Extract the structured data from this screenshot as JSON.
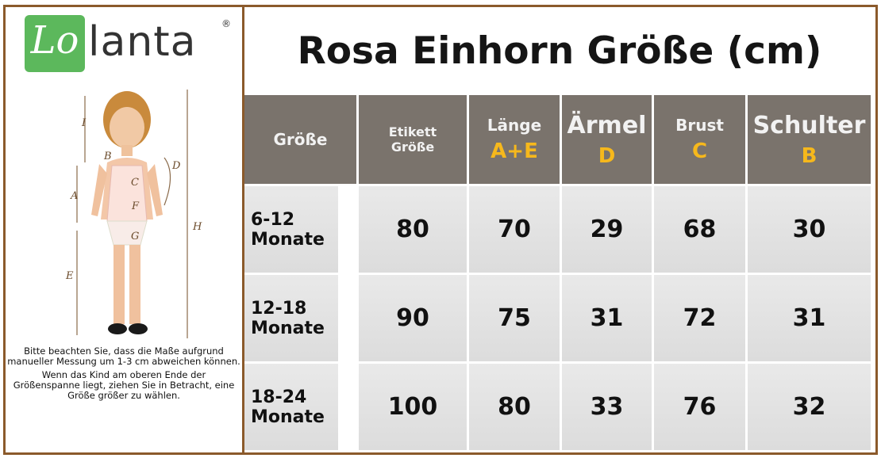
{
  "logo": {
    "mark": "Lo",
    "text": "lanta",
    "registered": "®"
  },
  "title": "Rosa Einhorn Größe (cm)",
  "diagram": {
    "labels": [
      "I",
      "B",
      "D",
      "A",
      "C",
      "F",
      "H",
      "G",
      "E"
    ]
  },
  "notes": [
    "Bitte beachten Sie, dass die Maße aufgrund manueller Messung um 1-3 cm abweichen können.",
    "Wenn das Kind am oberen Ende der Größenspanne liegt, ziehen Sie in Betracht, eine Größe größer zu wählen."
  ],
  "table": {
    "header": [
      {
        "label": "Größe"
      },
      {
        "label": "Etikett Größe"
      },
      {
        "label": "Länge",
        "letter": "A+E"
      },
      {
        "label": "Ärmel",
        "letter": "D"
      },
      {
        "label": "Brust",
        "letter": "C"
      },
      {
        "label": "Schulter",
        "letter": "B"
      }
    ],
    "rows": [
      [
        "6-12 Monate",
        80,
        70,
        29,
        68,
        30
      ],
      [
        "12-18 Monate",
        90,
        75,
        31,
        72,
        31
      ],
      [
        "18-24 Monate",
        100,
        80,
        33,
        76,
        32
      ]
    ]
  }
}
